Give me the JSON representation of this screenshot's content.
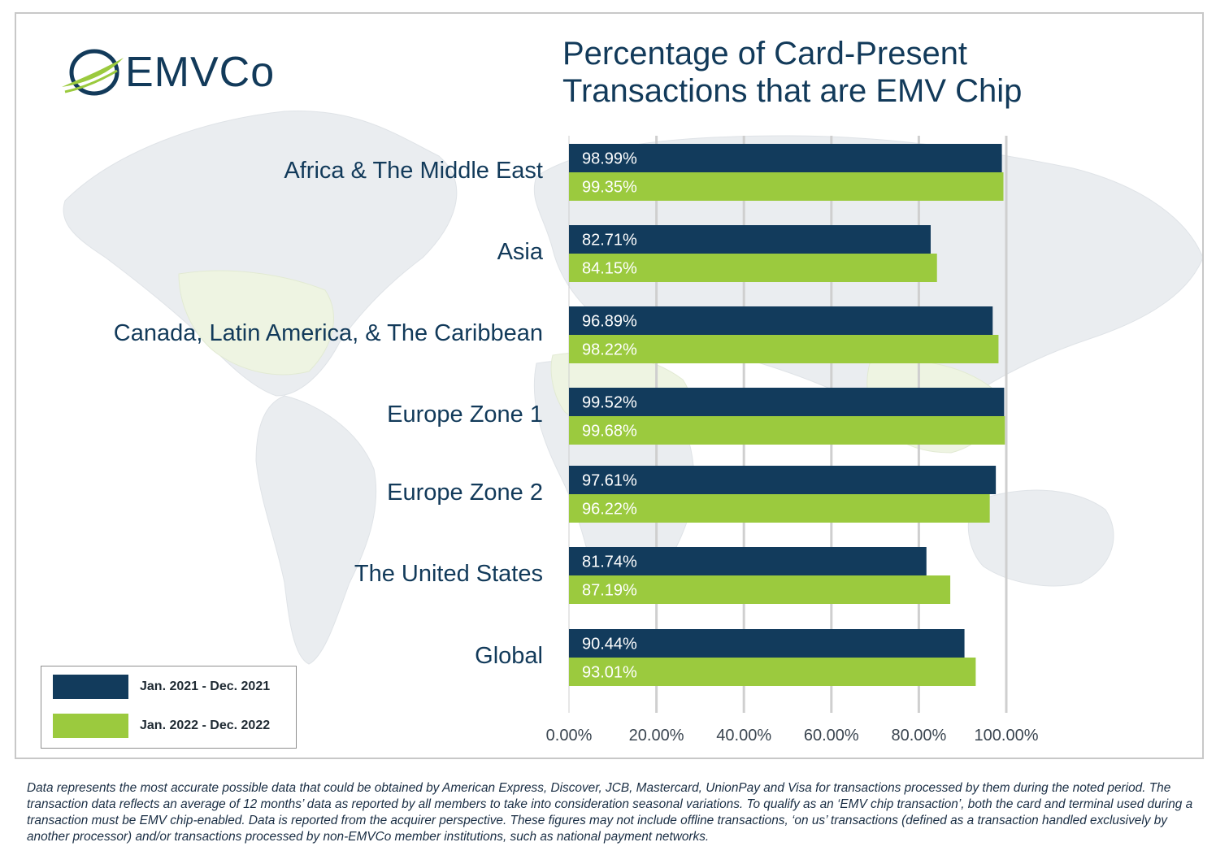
{
  "logo": {
    "text": "EMVCo"
  },
  "title": {
    "line1": "Percentage of Card-Present",
    "line2": "Transactions that are EMV Chip"
  },
  "colors": {
    "series_2021": "#123b5c",
    "series_2022": "#9bca3e",
    "text": "#123a5a",
    "gridline": "#cfcfcf"
  },
  "chart_data": {
    "type": "bar",
    "orientation": "horizontal",
    "categories": [
      "Africa & The Middle East",
      "Asia",
      "Canada, Latin America, & The Caribbean",
      "Europe Zone 1",
      "Europe Zone 2",
      "The United States",
      "Global"
    ],
    "series": [
      {
        "name": "Jan. 2021 - Dec. 2021",
        "values": [
          98.99,
          82.71,
          96.89,
          99.52,
          97.61,
          81.74,
          90.44
        ],
        "labels": [
          "98.99%",
          "82.71%",
          "96.89%",
          "99.52%",
          "97.61%",
          "81.74%",
          "90.44%"
        ]
      },
      {
        "name": "Jan. 2022 - Dec. 2022",
        "values": [
          99.35,
          84.15,
          98.22,
          99.68,
          96.22,
          87.19,
          93.01
        ],
        "labels": [
          "99.35%",
          "84.15%",
          "98.22%",
          "99.68%",
          "96.22%",
          "87.19%",
          "93.01%"
        ]
      }
    ],
    "xlim": [
      0,
      100
    ],
    "ticks": [
      "0.00%",
      "20.00%",
      "40.00%",
      "60.00%",
      "80.00%",
      "100.00%"
    ],
    "tick_values": [
      0,
      20,
      40,
      60,
      80,
      100
    ],
    "grid": true,
    "legend_position": "bottom-left"
  },
  "legend": {
    "item1": "Jan. 2021 - Dec. 2021",
    "item2": "Jan. 2022 - Dec. 2022"
  },
  "footnote": "Data represents the most accurate possible data that could be obtained by American Express, Discover, JCB, Mastercard, UnionPay and Visa for transactions processed by them during the noted period. The transaction data reflects an average of 12 months’ data as reported by all members to take into consideration seasonal variations. To qualify as an ‘EMV chip transaction’, both the card and terminal used during a transaction must be EMV chip-enabled. Data is reported from the acquirer perspective. These figures may not include offline transactions, ‘on us’ transactions (defined as a transaction handled exclusively by another processor) and/or transactions processed by non-EMVCo member institutions, such as national payment networks."
}
